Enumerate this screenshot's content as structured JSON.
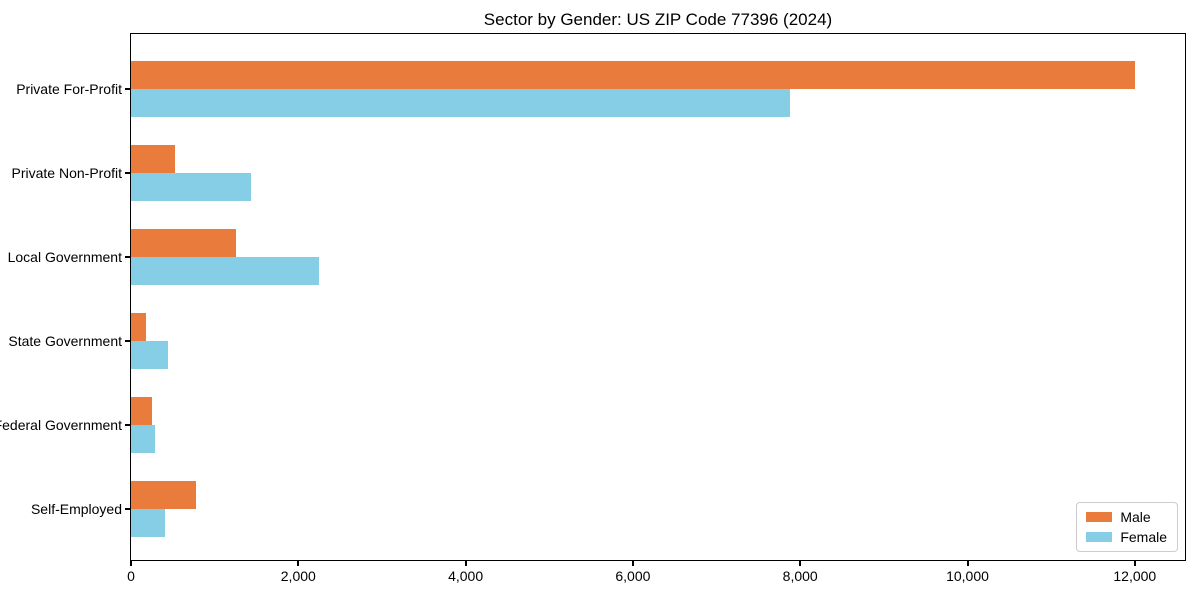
{
  "chart_data": {
    "type": "bar",
    "orientation": "horizontal",
    "title": "Sector by Gender: US ZIP Code 77396 (2024)",
    "categories": [
      "Private For-Profit",
      "Private Non-Profit",
      "Local Government",
      "State Government",
      "Federal Government",
      "Self-Employed"
    ],
    "series": [
      {
        "name": "Male",
        "color": "#E97C3C",
        "values": [
          12000,
          520,
          1250,
          180,
          250,
          780
        ]
      },
      {
        "name": "Female",
        "color": "#85CEE6",
        "values": [
          7880,
          1430,
          2250,
          440,
          290,
          400
        ]
      }
    ],
    "xlabel": "",
    "ylabel": "",
    "xlim": [
      0,
      12600
    ],
    "xticks": [
      0,
      2000,
      4000,
      6000,
      8000,
      10000,
      12000
    ],
    "xtick_labels": [
      "0",
      "2,000",
      "4,000",
      "6,000",
      "8,000",
      "10,000",
      "12,000"
    ],
    "grid": false,
    "legend": {
      "position": "lower right"
    }
  }
}
